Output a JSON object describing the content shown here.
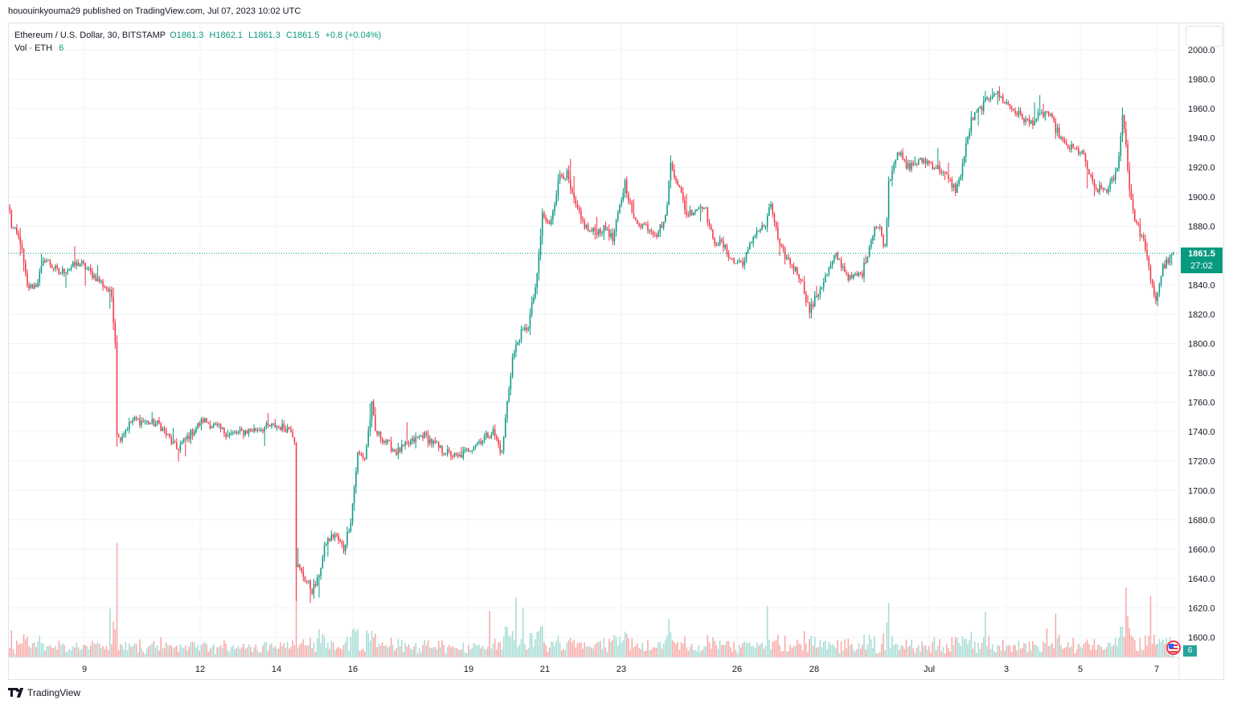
{
  "publisher_line": "hououinkyouma29 published on TradingView.com, Jul 07, 2023 10:02 UTC",
  "legend": {
    "symbol": "Ethereum / U.S. Dollar, 30, BITSTAMP",
    "open": "O1861.3",
    "high": "H1862.1",
    "low": "L1861.3",
    "close": "C1861.5",
    "change": "+0.8 (+0.04%)",
    "vol_label": "Vol · ETH",
    "vol_value": "6"
  },
  "price_tag": {
    "price": "1861.5",
    "countdown": "27:02"
  },
  "volume_badge": "6",
  "brand": "TradingView",
  "colors": {
    "up": "#089981",
    "down": "#f23645",
    "vol_up": "#a6dcd5",
    "vol_down": "#f7a9a7",
    "grid": "#f0f3fa",
    "axis_text": "#131722"
  },
  "chart_data": {
    "type": "candlestick",
    "instrument": "Ethereum / U.S. Dollar",
    "interval": "30",
    "exchange": "BITSTAMP",
    "ylim": [
      1580,
      2010
    ],
    "y_ticks": [
      1600,
      1620,
      1640,
      1660,
      1680,
      1700,
      1720,
      1740,
      1760,
      1780,
      1800,
      1820,
      1840,
      1860,
      1880,
      1900,
      1920,
      1940,
      1960,
      1980,
      2000
    ],
    "x_ticks": [
      "9",
      "12",
      "14",
      "16",
      "19",
      "21",
      "23",
      "26",
      "28",
      "Jul",
      "3",
      "5",
      "7"
    ],
    "last_price": 1861.5,
    "grid": true,
    "close_path": [
      [
        0,
        1890
      ],
      [
        1,
        1880
      ],
      [
        6,
        1870
      ],
      [
        10,
        1838
      ],
      [
        15,
        1840
      ],
      [
        20,
        1858
      ],
      [
        28,
        1848
      ],
      [
        40,
        1855
      ],
      [
        55,
        1838
      ],
      [
        58,
        1832
      ],
      [
        60,
        1802
      ],
      [
        61,
        1740
      ],
      [
        62,
        1735
      ],
      [
        70,
        1748
      ],
      [
        85,
        1745
      ],
      [
        95,
        1728
      ],
      [
        110,
        1748
      ],
      [
        125,
        1738
      ],
      [
        150,
        1744
      ],
      [
        160,
        1742
      ],
      [
        162,
        1735
      ],
      [
        163,
        1650
      ],
      [
        168,
        1640
      ],
      [
        172,
        1632
      ],
      [
        175,
        1638
      ],
      [
        180,
        1665
      ],
      [
        185,
        1670
      ],
      [
        190,
        1660
      ],
      [
        194,
        1680
      ],
      [
        198,
        1725
      ],
      [
        202,
        1722
      ],
      [
        206,
        1758
      ],
      [
        208,
        1740
      ],
      [
        220,
        1726
      ],
      [
        235,
        1738
      ],
      [
        245,
        1728
      ],
      [
        255,
        1722
      ],
      [
        265,
        1732
      ],
      [
        275,
        1740
      ],
      [
        280,
        1725
      ],
      [
        283,
        1760
      ],
      [
        286,
        1790
      ],
      [
        290,
        1805
      ],
      [
        295,
        1812
      ],
      [
        300,
        1845
      ],
      [
        303,
        1888
      ],
      [
        307,
        1880
      ],
      [
        313,
        1915
      ],
      [
        317,
        1915
      ],
      [
        320,
        1900
      ],
      [
        325,
        1884
      ],
      [
        330,
        1876
      ],
      [
        340,
        1878
      ],
      [
        343,
        1870
      ],
      [
        350,
        1910
      ],
      [
        355,
        1884
      ],
      [
        362,
        1880
      ],
      [
        368,
        1875
      ],
      [
        373,
        1885
      ],
      [
        376,
        1922
      ],
      [
        380,
        1910
      ],
      [
        385,
        1888
      ],
      [
        395,
        1895
      ],
      [
        400,
        1870
      ],
      [
        405,
        1868
      ],
      [
        412,
        1855
      ],
      [
        418,
        1856
      ],
      [
        424,
        1876
      ],
      [
        430,
        1880
      ],
      [
        433,
        1895
      ],
      [
        438,
        1865
      ],
      [
        444,
        1855
      ],
      [
        450,
        1845
      ],
      [
        455,
        1822
      ],
      [
        462,
        1840
      ],
      [
        470,
        1860
      ],
      [
        478,
        1844
      ],
      [
        485,
        1848
      ],
      [
        492,
        1880
      ],
      [
        495,
        1878
      ],
      [
        498,
        1865
      ],
      [
        500,
        1910
      ],
      [
        505,
        1932
      ],
      [
        510,
        1920
      ],
      [
        520,
        1925
      ],
      [
        530,
        1918
      ],
      [
        538,
        1905
      ],
      [
        540,
        1910
      ],
      [
        547,
        1952
      ],
      [
        560,
        1972
      ],
      [
        570,
        1960
      ],
      [
        580,
        1950
      ],
      [
        590,
        1958
      ],
      [
        600,
        1935
      ],
      [
        610,
        1930
      ],
      [
        617,
        1905
      ],
      [
        625,
        1905
      ],
      [
        630,
        1918
      ],
      [
        633,
        1955
      ],
      [
        635,
        1936
      ],
      [
        637,
        1905
      ],
      [
        640,
        1885
      ],
      [
        646,
        1866
      ],
      [
        649,
        1842
      ],
      [
        652,
        1830
      ],
      [
        656,
        1852
      ],
      [
        662,
        1861
      ]
    ]
  }
}
